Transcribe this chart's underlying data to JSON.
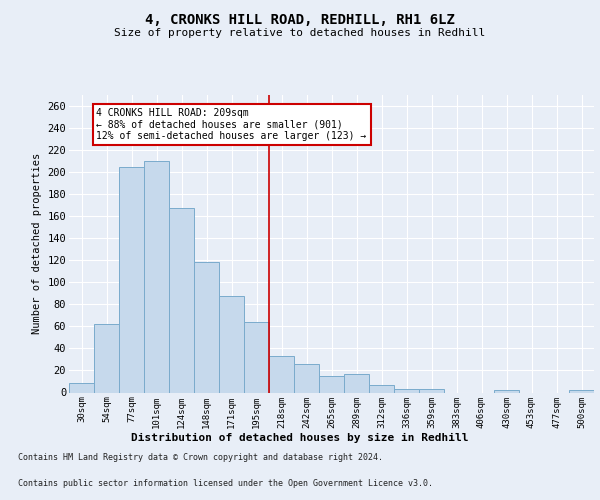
{
  "title1": "4, CRONKS HILL ROAD, REDHILL, RH1 6LZ",
  "title2": "Size of property relative to detached houses in Redhill",
  "xlabel": "Distribution of detached houses by size in Redhill",
  "ylabel": "Number of detached properties",
  "categories": [
    "30sqm",
    "54sqm",
    "77sqm",
    "101sqm",
    "124sqm",
    "148sqm",
    "171sqm",
    "195sqm",
    "218sqm",
    "242sqm",
    "265sqm",
    "289sqm",
    "312sqm",
    "336sqm",
    "359sqm",
    "383sqm",
    "406sqm",
    "430sqm",
    "453sqm",
    "477sqm",
    "500sqm"
  ],
  "values": [
    9,
    62,
    205,
    210,
    167,
    118,
    88,
    64,
    33,
    26,
    15,
    17,
    7,
    3,
    3,
    0,
    0,
    2,
    0,
    0,
    2
  ],
  "bar_color": "#c6d9ec",
  "bar_edge_color": "#7aabcc",
  "reference_line_x": 7.5,
  "reference_line_color": "#cc0000",
  "annotation_text": "4 CRONKS HILL ROAD: 209sqm\n← 88% of detached houses are smaller (901)\n12% of semi-detached houses are larger (123) →",
  "annotation_box_color": "#ffffff",
  "annotation_box_edge_color": "#cc0000",
  "ylim": [
    0,
    270
  ],
  "yticks": [
    0,
    20,
    40,
    60,
    80,
    100,
    120,
    140,
    160,
    180,
    200,
    220,
    240,
    260
  ],
  "footer1": "Contains HM Land Registry data © Crown copyright and database right 2024.",
  "footer2": "Contains public sector information licensed under the Open Government Licence v3.0.",
  "bg_color": "#e8eef7",
  "plot_bg_color": "#e8eef7",
  "grid_color": "#ffffff"
}
